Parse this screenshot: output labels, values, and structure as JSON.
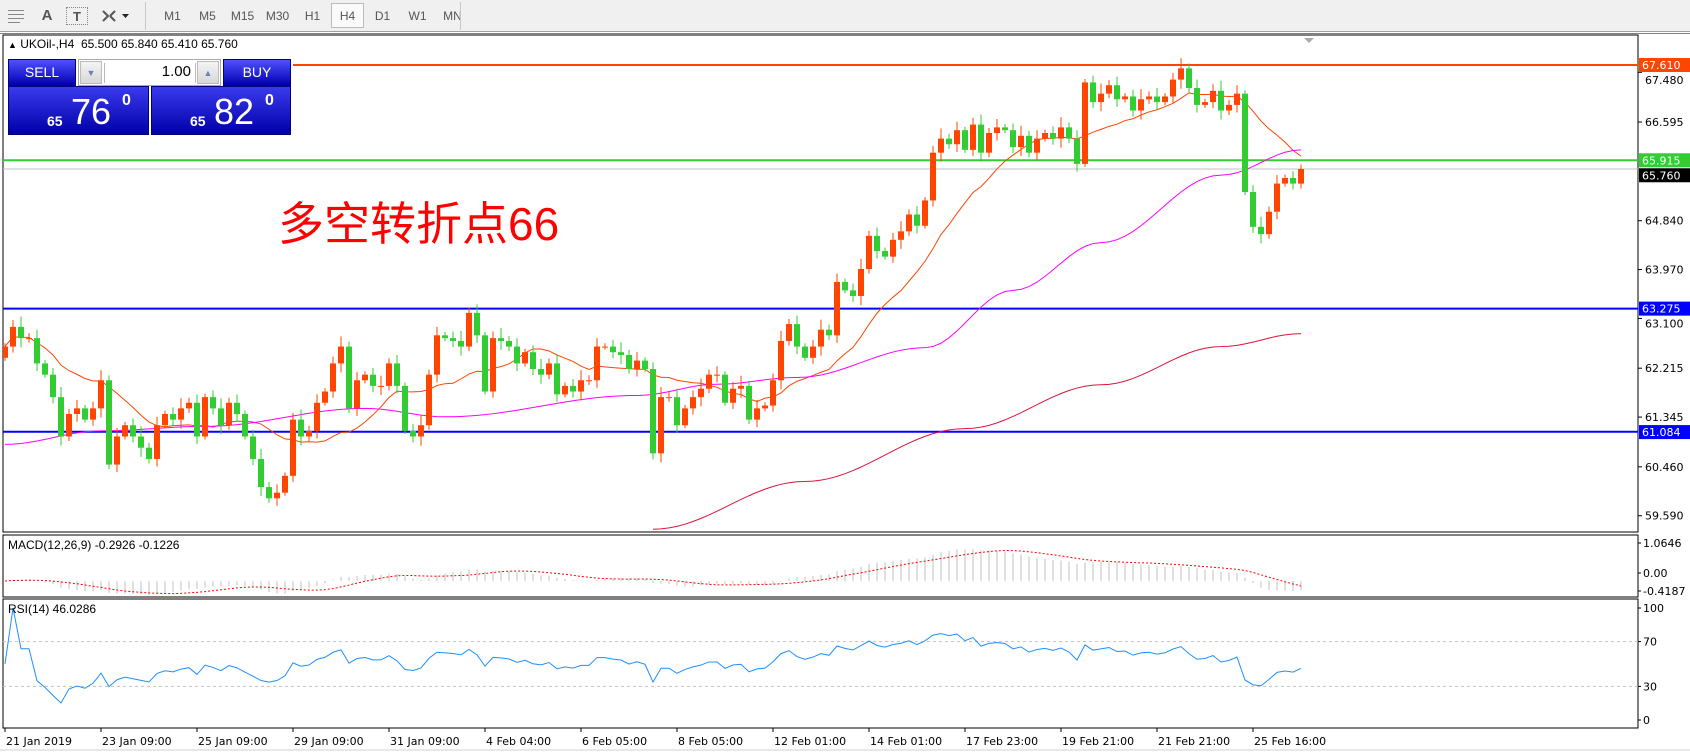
{
  "toolbar": {
    "tools": [
      {
        "icon": "grid-properties-icon"
      },
      {
        "icon": "text-icon",
        "label": "A"
      },
      {
        "icon": "text-label-icon",
        "label": "T"
      },
      {
        "icon": "arrows-shapes-icon"
      }
    ],
    "timeframes": [
      "M1",
      "M5",
      "M15",
      "M30",
      "H1",
      "H4",
      "D1",
      "W1",
      "MN"
    ],
    "selected_timeframe": "H4"
  },
  "chart": {
    "symbol": "UKOil-,H4",
    "ohlc": {
      "open": "65.500",
      "high": "65.840",
      "low": "65.410",
      "close": "65.760"
    },
    "annotation": "多空转折点66",
    "colors": {
      "bull": "#ff4500",
      "bear": "#32cd32",
      "ma_fast": "#ff4500",
      "ma_mid": "#ff00ff",
      "ma_slow": "#dc143c"
    }
  },
  "trade_panel": {
    "sell_label": "SELL",
    "buy_label": "BUY",
    "lot": "1.00",
    "sell_price": {
      "big": "65",
      "main": "76",
      "sup": "0"
    },
    "buy_price": {
      "big": "65",
      "main": "82",
      "sup": "0"
    }
  },
  "price_axis": {
    "ticks": [
      "67.480",
      "66.595",
      "64.840",
      "63.970",
      "63.100",
      "62.215",
      "61.345",
      "60.460",
      "59.590"
    ],
    "levels": [
      {
        "value": "67.610",
        "color": "#ff4500",
        "from_panel": true
      },
      {
        "value": "65.915",
        "color": "#32cd32"
      },
      {
        "value": "65.760",
        "color": "#000000",
        "line": "#c0c0c0"
      },
      {
        "value": "63.275",
        "color": "#0000ff"
      },
      {
        "value": "61.084",
        "color": "#0000ff"
      }
    ]
  },
  "macd": {
    "label": "MACD(12,26,9) -0.2926 -0.1226",
    "ticks": [
      "1.0646",
      "0.00",
      "-0.4187"
    ]
  },
  "rsi": {
    "label": "RSI(14) 46.0286",
    "ticks": [
      "100",
      "70",
      "30",
      "0"
    ],
    "levels": [
      70,
      30
    ]
  },
  "time_axis": [
    "21 Jan 2019",
    "23 Jan 09:00",
    "25 Jan 09:00",
    "29 Jan 09:00",
    "31 Jan 09:00",
    "4 Feb 04:00",
    "6 Feb 05:00",
    "8 Feb 05:00",
    "12 Feb 01:00",
    "14 Feb 01:00",
    "17 Feb 23:00",
    "19 Feb 21:00",
    "21 Feb 21:00",
    "25 Feb 16:00"
  ],
  "chart_data": {
    "type": "candlestick",
    "closes": [
      62.6,
      62.95,
      62.75,
      62.75,
      62.3,
      62.1,
      61.7,
      61.0,
      61.4,
      61.5,
      61.3,
      61.5,
      62.0,
      60.5,
      61.0,
      61.2,
      61.0,
      60.8,
      60.6,
      61.2,
      61.4,
      61.3,
      61.5,
      61.6,
      61.0,
      61.7,
      61.5,
      61.2,
      61.6,
      61.4,
      61.0,
      60.6,
      60.1,
      59.9,
      60.0,
      60.3,
      61.3,
      61.0,
      61.1,
      61.6,
      61.8,
      62.3,
      62.6,
      61.5,
      62.0,
      62.1,
      61.9,
      61.9,
      62.3,
      61.9,
      61.1,
      61.0,
      61.2,
      62.1,
      62.8,
      62.75,
      62.7,
      62.6,
      63.2,
      62.8,
      61.8,
      62.75,
      62.7,
      62.6,
      62.3,
      62.5,
      62.2,
      62.1,
      62.3,
      61.75,
      61.9,
      61.8,
      62.0,
      62.0,
      62.6,
      62.6,
      62.5,
      62.45,
      62.2,
      62.35,
      62.2,
      60.7,
      61.7,
      61.7,
      61.2,
      61.5,
      61.7,
      61.85,
      62.1,
      62.1,
      61.6,
      61.85,
      61.9,
      61.3,
      61.5,
      61.55,
      62.0,
      62.7,
      63.0,
      62.6,
      62.4,
      62.6,
      62.9,
      62.8,
      63.75,
      63.6,
      63.5,
      63.98,
      64.57,
      64.3,
      64.2,
      64.5,
      64.65,
      64.95,
      64.75,
      65.2,
      66.05,
      66.3,
      66.2,
      66.45,
      66.1,
      66.55,
      66.05,
      66.4,
      66.5,
      66.45,
      66.15,
      66.35,
      66.05,
      66.3,
      66.4,
      66.3,
      66.5,
      66.3,
      65.85,
      67.3,
      66.95,
      67.1,
      67.25,
      67.0,
      67.05,
      66.8,
      67.0,
      67.05,
      66.95,
      67.05,
      67.35,
      67.55,
      67.2,
      66.9,
      66.95,
      67.15,
      66.8,
      66.9,
      67.1,
      65.35,
      64.73,
      64.6,
      65.0,
      65.5,
      65.6,
      65.5,
      65.76
    ],
    "ma_mid_points": [
      [
        0,
        60.86
      ],
      [
        12,
        61.1
      ],
      [
        25,
        61.18
      ],
      [
        45,
        61.5
      ],
      [
        55,
        61.35
      ],
      [
        79,
        61.73
      ],
      [
        89,
        61.93
      ],
      [
        99,
        62.05
      ],
      [
        115,
        62.58
      ],
      [
        126,
        63.6
      ],
      [
        137,
        64.45
      ],
      [
        152,
        65.65
      ],
      [
        162,
        66.1
      ]
    ],
    "ma_slow_points": [
      [
        81,
        59.35
      ],
      [
        100,
        60.2
      ],
      [
        120,
        61.14
      ],
      [
        137,
        61.92
      ],
      [
        152,
        62.6
      ],
      [
        162,
        62.83
      ]
    ],
    "ylim": [
      59.35,
      68.1
    ]
  }
}
